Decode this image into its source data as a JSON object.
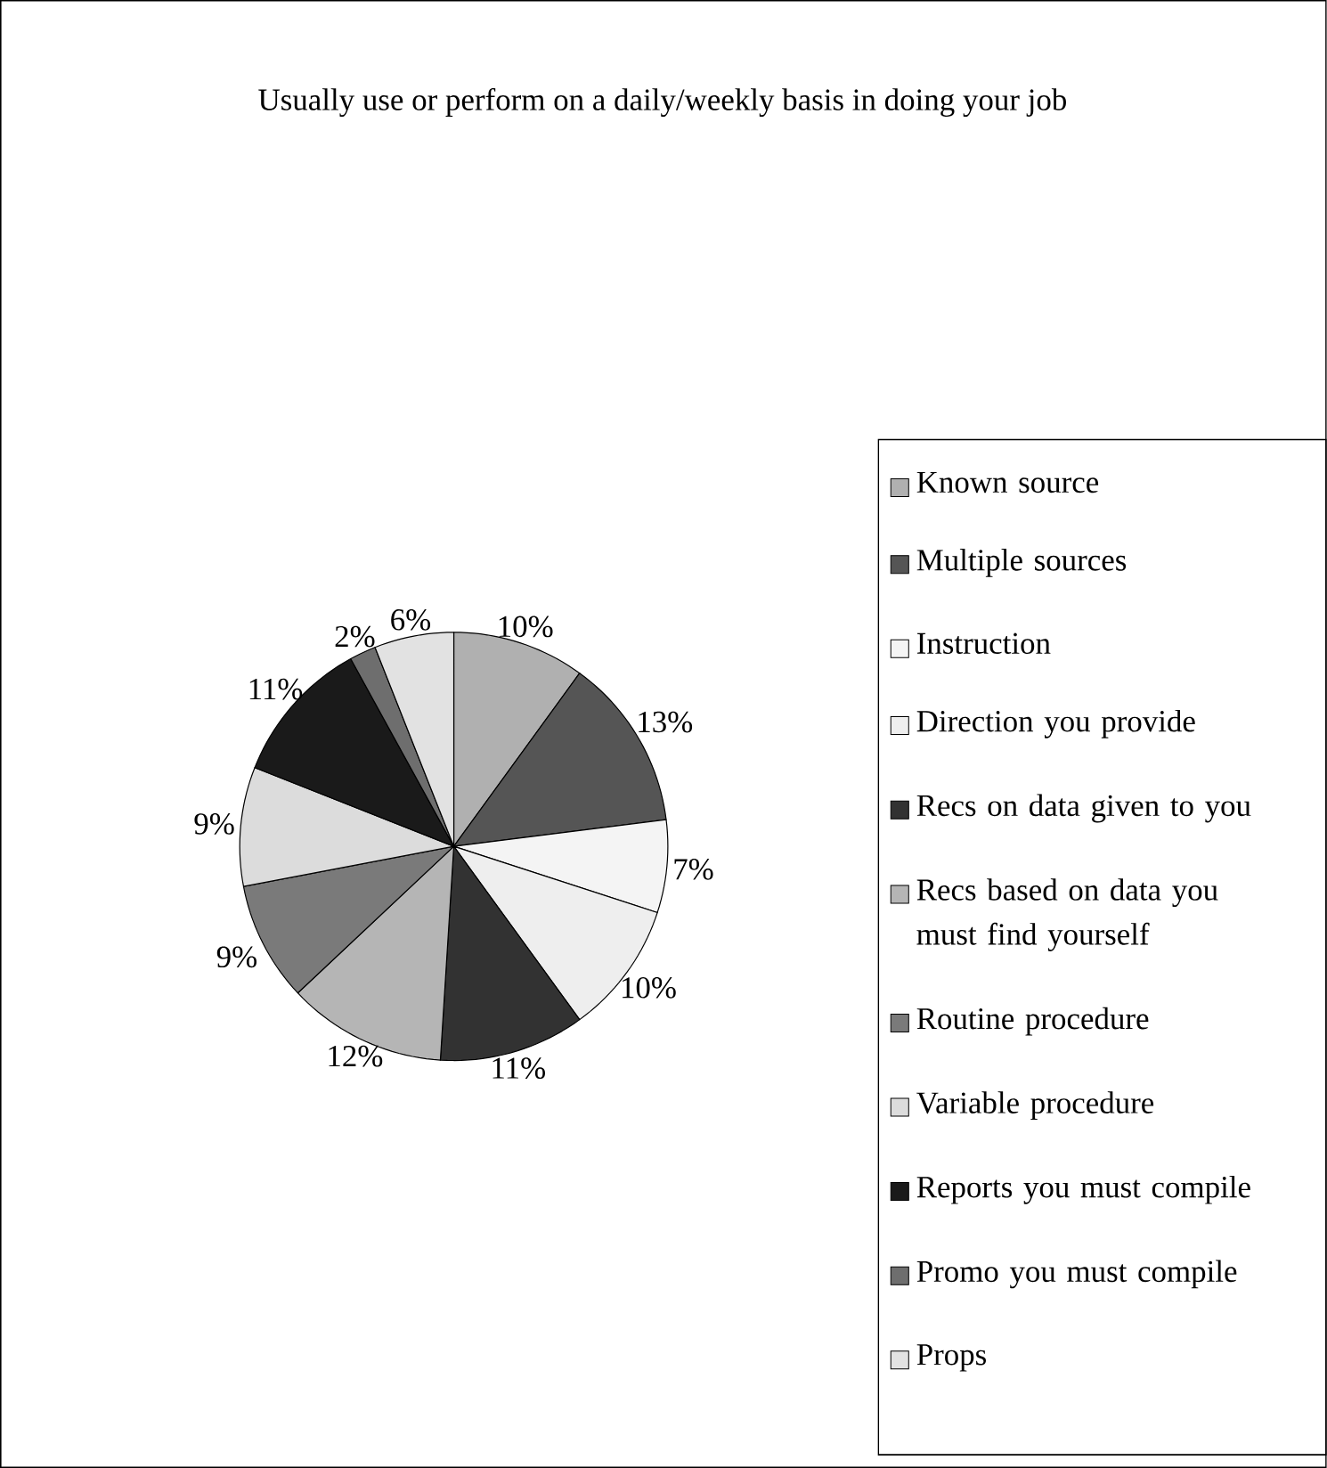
{
  "chart_data": {
    "type": "pie",
    "title": "Usually use or perform on a daily/weekly basis in doing your job",
    "categories": [
      "Known source",
      "Multiple sources",
      "Instruction",
      "Direction you provide",
      "Recs on data given to you",
      "Recs based on data you must find yourself",
      "Routine procedure",
      "Variable procedure",
      "Reports you must compile",
      "Promo you must compile",
      "Props"
    ],
    "values": [
      10,
      13,
      7,
      10,
      11,
      12,
      9,
      9,
      11,
      2,
      6
    ],
    "value_labels": [
      "10%",
      "13%",
      "7%",
      "10%",
      "11%",
      "12%",
      "9%",
      "9%",
      "11%",
      "2%",
      "6%"
    ],
    "colors": [
      "#b0b0b0",
      "#555555",
      "#f4f4f4",
      "#eeeeee",
      "#323232",
      "#b5b5b5",
      "#7a7a7a",
      "#dcdcdc",
      "#1a1a1a",
      "#6e6e6e",
      "#e2e2e2"
    ],
    "legend": "right"
  }
}
